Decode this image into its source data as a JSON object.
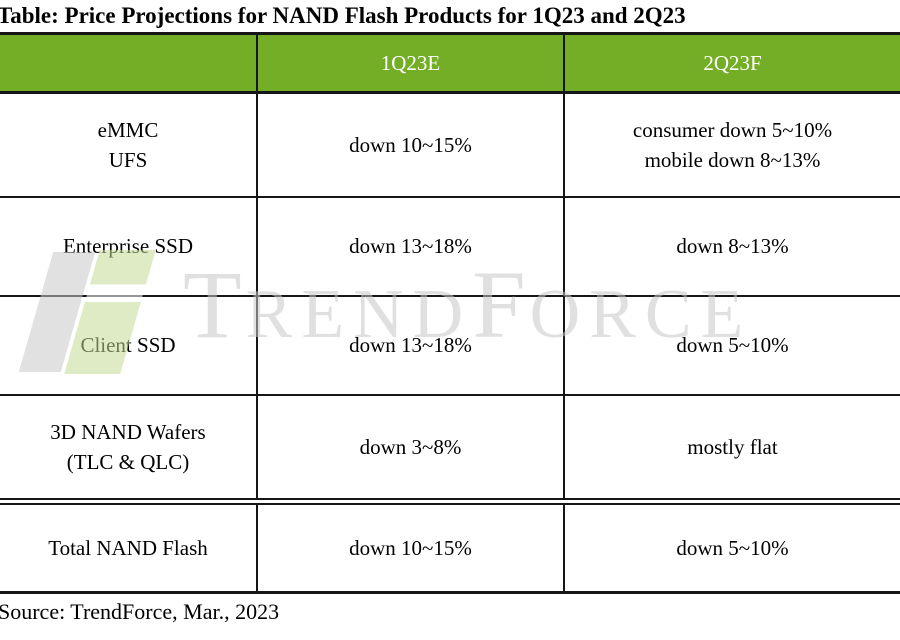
{
  "colors": {
    "header_green": "#74ad26",
    "header_text": "#ffffff",
    "border_black": "#161616",
    "watermark_gray": "#c7c7c7",
    "watermark_logo_green": "#c4db95"
  },
  "chart_data": {
    "type": "table",
    "title": "Table: Price Projections for NAND Flash Products for 1Q23 and 2Q23",
    "columns": {
      "product": "",
      "q1": "1Q23E",
      "q2": "2Q23F"
    },
    "rows": [
      {
        "product": [
          "eMMC",
          "UFS"
        ],
        "q1": [
          "down 10~15%"
        ],
        "q2": [
          "consumer down 5~10%",
          "mobile down 8~13%"
        ]
      },
      {
        "product": [
          "Enterprise SSD"
        ],
        "q1": [
          "down 13~18%"
        ],
        "q2": [
          "down 8~13%"
        ]
      },
      {
        "product": [
          "Client SSD"
        ],
        "q1": [
          "down 13~18%"
        ],
        "q2": [
          "down 5~10%"
        ]
      },
      {
        "product": [
          "3D NAND Wafers",
          "(TLC & QLC)"
        ],
        "q1": [
          "down 3~8%"
        ],
        "q2": [
          "mostly flat"
        ]
      },
      {
        "product": [
          "Total NAND Flash"
        ],
        "q1": [
          "down 10~15%"
        ],
        "q2": [
          "down 5~10%"
        ]
      }
    ],
    "source": "Source: TrendForce, Mar., 2023"
  },
  "watermark": {
    "brand": "TrendForce",
    "t_big": "T",
    "t_small": "REND",
    "f_big": "F",
    "f_small": "ORCE"
  }
}
